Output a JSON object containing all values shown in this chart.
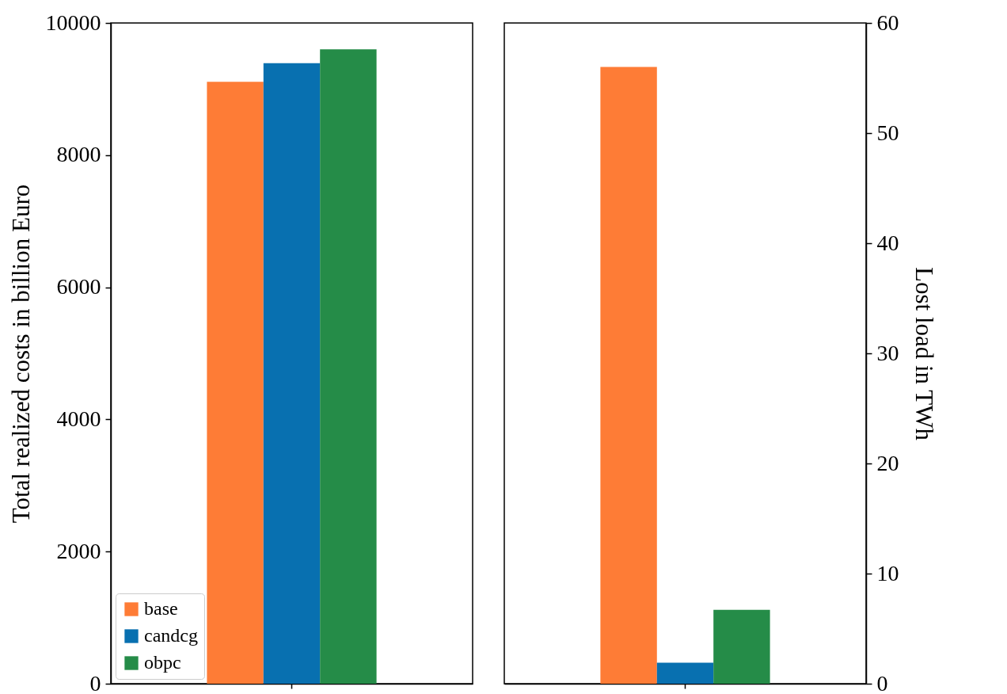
{
  "chart_data": [
    {
      "type": "bar",
      "ylabel": "Total realized costs in billion Euro",
      "categories": [
        null
      ],
      "ylim": [
        0,
        10000
      ],
      "yticks": [
        0,
        2000,
        4000,
        6000,
        8000,
        10000
      ],
      "legend": "bottom left",
      "series": [
        {
          "name": "base",
          "color": "#fe7c36",
          "values": [
            9110
          ]
        },
        {
          "name": "candcg",
          "color": "#0870b0",
          "values": [
            9390
          ]
        },
        {
          "name": "obpc",
          "color": "#258c48",
          "values": [
            9600
          ]
        }
      ]
    },
    {
      "type": "bar",
      "ylabel": "Lost load in TWh",
      "categories": [
        null
      ],
      "ylim": [
        0,
        60
      ],
      "yticks": [
        0,
        10,
        20,
        30,
        40,
        50,
        60
      ],
      "series": [
        {
          "color": "#fe7c36",
          "values": [
            56.0
          ]
        },
        {
          "color": "#0870b0",
          "values": [
            1.9
          ]
        },
        {
          "color": "#258c48",
          "values": [
            6.7
          ]
        }
      ]
    }
  ]
}
